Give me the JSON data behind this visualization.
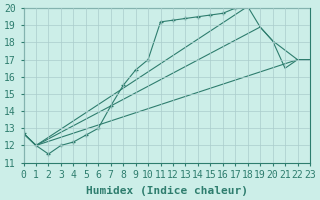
{
  "xlabel": "Humidex (Indice chaleur)",
  "background_color": "#cceee8",
  "grid_color": "#aacccc",
  "line_color": "#2e7d6e",
  "xlim": [
    0,
    23
  ],
  "ylim": [
    11,
    20
  ],
  "series_main": {
    "x": [
      0,
      1,
      2,
      3,
      4,
      5,
      6,
      7,
      8,
      9,
      10,
      11,
      12,
      13,
      14,
      15,
      16,
      17,
      18
    ],
    "y": [
      12.7,
      12.0,
      11.5,
      12.0,
      12.2,
      12.6,
      13.0,
      14.3,
      15.5,
      16.4,
      17.0,
      19.2,
      19.3,
      19.4,
      19.5,
      19.6,
      19.7,
      20.0,
      20.1
    ],
    "marker": "+"
  },
  "envelope_lines": [
    {
      "x": [
        0,
        1,
        22,
        23
      ],
      "y": [
        12.7,
        12.0,
        17.0,
        17.0
      ]
    },
    {
      "x": [
        0,
        1,
        19,
        20,
        22,
        23
      ],
      "y": [
        12.7,
        12.0,
        18.9,
        18.1,
        17.0,
        17.0
      ]
    },
    {
      "x": [
        0,
        1,
        18,
        19,
        20,
        21,
        22,
        23
      ],
      "y": [
        12.7,
        12.0,
        20.1,
        18.9,
        18.1,
        16.5,
        17.0,
        17.0
      ]
    }
  ],
  "xticks": [
    0,
    1,
    2,
    3,
    4,
    5,
    6,
    7,
    8,
    9,
    10,
    11,
    12,
    13,
    14,
    15,
    16,
    17,
    18,
    19,
    20,
    21,
    22,
    23
  ],
  "yticks": [
    11,
    12,
    13,
    14,
    15,
    16,
    17,
    18,
    19,
    20
  ],
  "tick_fontsize": 7,
  "label_fontsize": 8
}
